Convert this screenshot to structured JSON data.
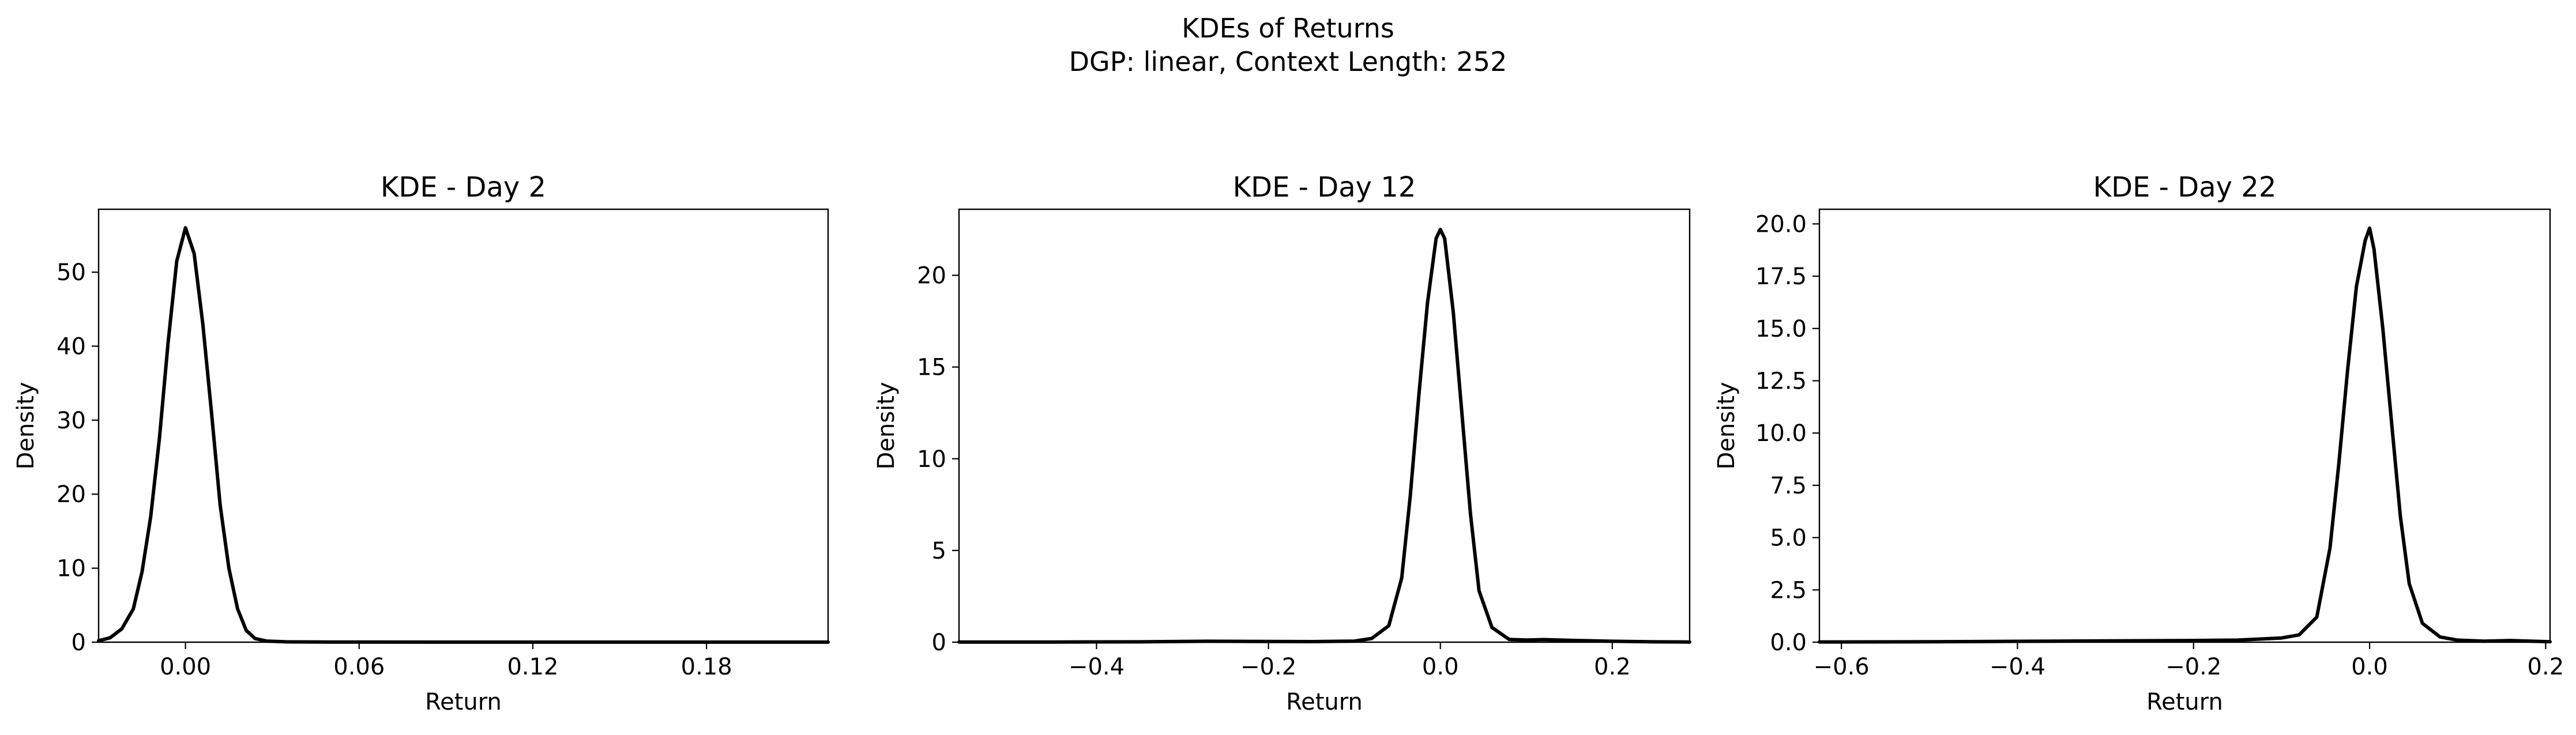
{
  "figure": {
    "title_line1": "KDEs of Returns",
    "title_line2": "DGP: linear, Context Length: 252",
    "line_color": "#000000"
  },
  "chart_data": [
    {
      "type": "line",
      "title": "KDE - Day 2",
      "xlabel": "Return",
      "ylabel": "Density",
      "xlim": [
        -0.03,
        0.222
      ],
      "ylim": [
        0,
        58.5
      ],
      "xticks": [
        0.0,
        0.06,
        0.12,
        0.18
      ],
      "xtick_labels": [
        "0.00",
        "0.06",
        "0.12",
        "0.18"
      ],
      "yticks": [
        0,
        10,
        20,
        30,
        40,
        50
      ],
      "ytick_labels": [
        "0",
        "10",
        "20",
        "30",
        "40",
        "50"
      ],
      "grid": false,
      "series": [
        {
          "x": [
            -0.03,
            -0.026,
            -0.022,
            -0.018,
            -0.015,
            -0.012,
            -0.009,
            -0.006,
            -0.003,
            0.0,
            0.003,
            0.006,
            0.009,
            0.012,
            0.015,
            0.018,
            0.021,
            0.024,
            0.028,
            0.035,
            0.05,
            0.1,
            0.15,
            0.222
          ],
          "y": [
            0.2,
            0.6,
            1.8,
            4.5,
            9.5,
            17.0,
            27.5,
            40.5,
            51.5,
            56.0,
            52.5,
            43.0,
            31.0,
            18.5,
            10.0,
            4.5,
            1.6,
            0.5,
            0.15,
            0.05,
            0.02,
            0.01,
            0.01,
            0.01
          ]
        }
      ]
    },
    {
      "type": "line",
      "title": "KDE - Day 12",
      "xlabel": "Return",
      "ylabel": "Density",
      "xlim": [
        -0.56,
        0.29
      ],
      "ylim": [
        0,
        23.6
      ],
      "xticks": [
        -0.4,
        -0.2,
        0.0,
        0.2
      ],
      "xtick_labels": [
        "−0.4",
        "−0.2",
        "0.0",
        "0.2"
      ],
      "yticks": [
        0,
        5,
        10,
        15,
        20
      ],
      "ytick_labels": [
        "0",
        "5",
        "10",
        "15",
        "20"
      ],
      "grid": false,
      "series": [
        {
          "x": [
            -0.56,
            -0.45,
            -0.35,
            -0.27,
            -0.2,
            -0.15,
            -0.1,
            -0.08,
            -0.06,
            -0.045,
            -0.035,
            -0.025,
            -0.015,
            -0.005,
            0.0,
            0.005,
            0.015,
            0.025,
            0.035,
            0.045,
            0.06,
            0.08,
            0.1,
            0.12,
            0.15,
            0.2,
            0.25,
            0.29
          ],
          "y": [
            0.01,
            0.01,
            0.02,
            0.05,
            0.04,
            0.03,
            0.06,
            0.2,
            0.9,
            3.5,
            8.0,
            13.5,
            18.5,
            22.0,
            22.5,
            22.0,
            18.0,
            12.5,
            7.0,
            2.8,
            0.8,
            0.15,
            0.12,
            0.14,
            0.1,
            0.05,
            0.02,
            0.01
          ]
        }
      ]
    },
    {
      "type": "line",
      "title": "KDE - Day 22",
      "xlabel": "Return",
      "ylabel": "Density",
      "xlim": [
        -0.625,
        0.205
      ],
      "ylim": [
        0,
        20.7
      ],
      "xticks": [
        -0.6,
        -0.4,
        -0.2,
        0.0,
        0.2
      ],
      "xtick_labels": [
        "−0.6",
        "−0.4",
        "−0.2",
        "0.0",
        "0.2"
      ],
      "yticks": [
        0,
        2.5,
        5.0,
        7.5,
        10.0,
        12.5,
        15.0,
        17.5,
        20.0
      ],
      "ytick_labels": [
        "0.0",
        "2.5",
        "5.0",
        "7.5",
        "10.0",
        "12.5",
        "15.0",
        "17.5",
        "20.0"
      ],
      "grid": false,
      "series": [
        {
          "x": [
            -0.625,
            -0.5,
            -0.4,
            -0.3,
            -0.2,
            -0.15,
            -0.1,
            -0.08,
            -0.06,
            -0.045,
            -0.035,
            -0.025,
            -0.015,
            -0.005,
            0.0,
            0.005,
            0.015,
            0.025,
            0.035,
            0.045,
            0.06,
            0.08,
            0.1,
            0.13,
            0.16,
            0.205
          ],
          "y": [
            0.01,
            0.02,
            0.04,
            0.06,
            0.08,
            0.1,
            0.2,
            0.35,
            1.2,
            4.5,
            8.5,
            13.0,
            17.0,
            19.2,
            19.8,
            18.8,
            15.0,
            10.5,
            6.0,
            2.8,
            0.9,
            0.25,
            0.1,
            0.05,
            0.08,
            0.02
          ]
        }
      ]
    }
  ]
}
